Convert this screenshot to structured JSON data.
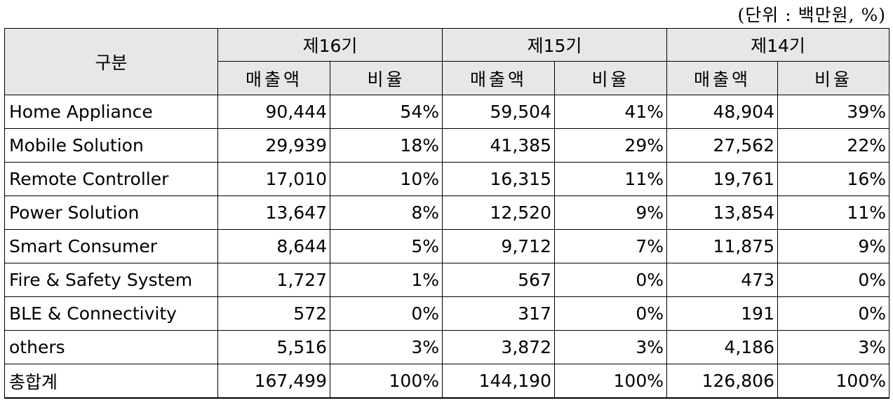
{
  "unit_note": "(단위 : 백만원, %)",
  "header": {
    "category": "구분",
    "periods": [
      "제16기",
      "제15기",
      "제14기"
    ],
    "sales_label": "매출액",
    "ratio_label": "비율"
  },
  "rows": [
    {
      "name": "Home Appliance",
      "v16": "90,444",
      "r16": "54%",
      "v15": "59,504",
      "r15": "41%",
      "v14": "48,904",
      "r14": "39%"
    },
    {
      "name": "Mobile Solution",
      "v16": "29,939",
      "r16": "18%",
      "v15": "41,385",
      "r15": "29%",
      "v14": "27,562",
      "r14": "22%"
    },
    {
      "name": "Remote Controller",
      "v16": "17,010",
      "r16": "10%",
      "v15": "16,315",
      "r15": "11%",
      "v14": "19,761",
      "r14": "16%"
    },
    {
      "name": "Power Solution",
      "v16": "13,647",
      "r16": "8%",
      "v15": "12,520",
      "r15": "9%",
      "v14": "13,854",
      "r14": "11%"
    },
    {
      "name": "Smart Consumer",
      "v16": "8,644",
      "r16": "5%",
      "v15": "9,712",
      "r15": "7%",
      "v14": "11,875",
      "r14": "9%"
    },
    {
      "name": "Fire & Safety System",
      "v16": "1,727",
      "r16": "1%",
      "v15": "567",
      "r15": "0%",
      "v14": "473",
      "r14": "0%"
    },
    {
      "name": "BLE & Connectivity",
      "v16": "572",
      "r16": "0%",
      "v15": "317",
      "r15": "0%",
      "v14": "191",
      "r14": "0%"
    },
    {
      "name": "others",
      "v16": "5,516",
      "r16": "3%",
      "v15": "3,872",
      "r15": "3%",
      "v14": "4,186",
      "r14": "3%"
    },
    {
      "name": "총합계",
      "v16": "167,499",
      "r16": "100%",
      "v15": "144,190",
      "r15": "100%",
      "v14": "126,806",
      "r14": "100%"
    }
  ]
}
